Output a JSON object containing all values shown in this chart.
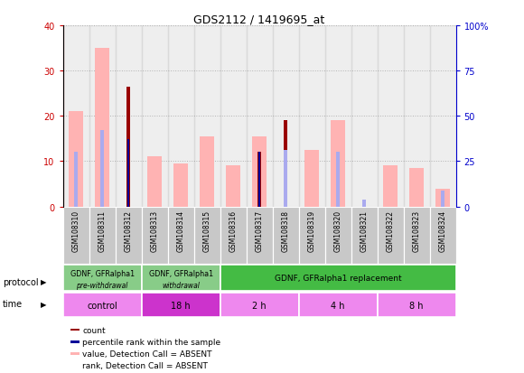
{
  "title": "GDS2112 / 1419695_at",
  "samples": [
    "GSM108310",
    "GSM108311",
    "GSM108312",
    "GSM108313",
    "GSM108314",
    "GSM108315",
    "GSM108316",
    "GSM108317",
    "GSM108318",
    "GSM108319",
    "GSM108320",
    "GSM108321",
    "GSM108322",
    "GSM108323",
    "GSM108324"
  ],
  "count_values": [
    0,
    0,
    26.5,
    0,
    0,
    0,
    0,
    12,
    19,
    0,
    0,
    0,
    0,
    0,
    0
  ],
  "rank_values_pct": [
    0,
    0,
    37,
    0,
    0,
    0,
    0,
    30,
    0,
    0,
    0,
    0,
    0,
    0,
    0
  ],
  "absent_value_bars": [
    21,
    35,
    0,
    11,
    9.5,
    15.5,
    9,
    15.5,
    0,
    12.5,
    19,
    0,
    9,
    8.5,
    4
  ],
  "absent_rank_bars_pct": [
    30,
    42,
    0,
    0,
    0,
    0,
    0,
    0,
    31,
    0,
    30,
    4,
    0,
    0,
    9
  ],
  "ylim_left": [
    0,
    40
  ],
  "ylim_right": [
    0,
    100
  ],
  "yticks_left": [
    0,
    10,
    20,
    30,
    40
  ],
  "yticks_right": [
    0,
    25,
    50,
    75,
    100
  ],
  "ytick_labels_left": [
    "0",
    "10",
    "20",
    "30",
    "40"
  ],
  "ytick_labels_right": [
    "0",
    "25",
    "50",
    "75",
    "100%"
  ],
  "color_count": "#990000",
  "color_rank": "#000099",
  "color_absent_value": "#ffb3b3",
  "color_absent_rank": "#aaaaee",
  "color_bg_sample": "#c8c8c8",
  "protocol_groups": [
    {
      "label": "GDNF, GFRalpha1",
      "sublabel": "pre-withdrawal",
      "start": 0,
      "end": 3,
      "color": "#88cc88"
    },
    {
      "label": "GDNF, GFRalpha1",
      "sublabel": "withdrawal",
      "start": 3,
      "end": 6,
      "color": "#88cc88"
    },
    {
      "label": "GDNF, GFRalpha1 replacement",
      "sublabel": "",
      "start": 6,
      "end": 15,
      "color": "#44bb44"
    }
  ],
  "time_groups": [
    {
      "label": "control",
      "start": 0,
      "end": 3,
      "color": "#ee88ee"
    },
    {
      "label": "18 h",
      "start": 3,
      "end": 6,
      "color": "#cc33cc"
    },
    {
      "label": "2 h",
      "start": 6,
      "end": 9,
      "color": "#ee88ee"
    },
    {
      "label": "4 h",
      "start": 9,
      "end": 12,
      "color": "#ee88ee"
    },
    {
      "label": "8 h",
      "start": 12,
      "end": 15,
      "color": "#ee88ee"
    }
  ],
  "grid_color": "#000000",
  "grid_alpha": 0.25,
  "tick_color_left": "#cc0000",
  "tick_color_right": "#0000cc",
  "absent_bar_width": 0.55,
  "count_bar_width": 0.12,
  "rank_bar_width": 0.12
}
